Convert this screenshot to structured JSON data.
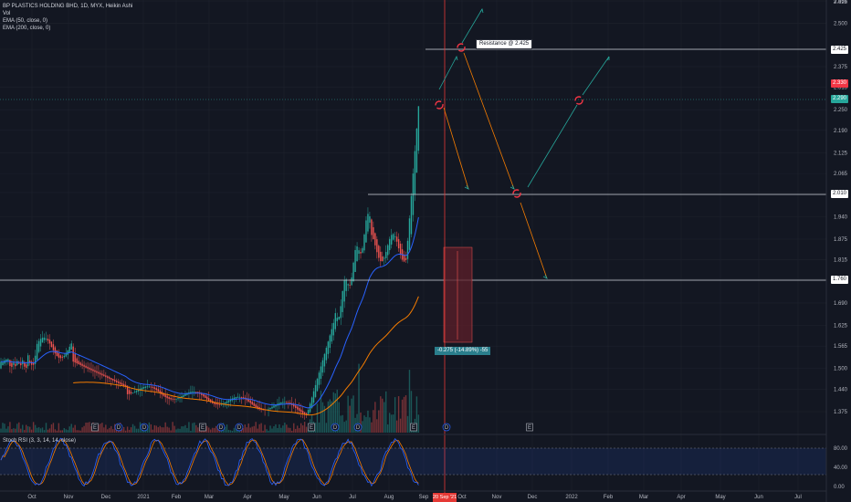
{
  "header": {
    "title": "BP PLASTICS HOLDING BHD, 1D, MYX, Heikin Ashi",
    "vol_label": "Vol",
    "ema50_label": "EMA (50, close, 0)",
    "ema200_label": "EMA (200, close, 0)"
  },
  "rsi_label": "Stoch RSI (3, 3, 14, 14, close)",
  "resistance_label": "Resistance @ 2.425",
  "measure_label": "-0.275 (-14.89%) -55",
  "current_date_label": "20 Sep '21",
  "price_axis": {
    "ticks": [
      "2.565",
      "2.500",
      "2.425",
      "2.375",
      "2.315",
      "2.250",
      "2.190",
      "2.125",
      "2.065",
      "2.010",
      "1.940",
      "1.875",
      "1.815",
      "1.760",
      "1.690",
      "1.625",
      "1.565",
      "1.500",
      "1.440",
      "1.375"
    ],
    "top_partial": "2.625",
    "tags": [
      {
        "text": "2.425",
        "bg": "#ffffff",
        "fg": "#131722"
      },
      {
        "text": "2.330",
        "bg": "#f23645",
        "fg": "#ffffff"
      },
      {
        "text": "2.290",
        "bg": "#26a69a",
        "fg": "#ffffff"
      },
      {
        "text": "2.010",
        "bg": "#ffffff",
        "fg": "#131722"
      },
      {
        "text": "1.760",
        "bg": "#ffffff",
        "fg": "#131722"
      }
    ]
  },
  "rsi_axis": {
    "ticks": [
      "80.00",
      "40.00",
      "0.00"
    ]
  },
  "time_axis": {
    "ticks": [
      "Oct",
      "Nov",
      "Dec",
      "2021",
      "Feb",
      "Mar",
      "Apr",
      "May",
      "Jun",
      "Jul",
      "Aug",
      "Sep",
      "Oct",
      "Nov",
      "Dec",
      "2022",
      "Feb",
      "Mar",
      "Apr",
      "May",
      "Jun",
      "Jul"
    ]
  },
  "event_markers": [
    "E",
    "D",
    "D",
    "E",
    "D",
    "D",
    "E",
    "D",
    "D",
    "E",
    "D",
    "E"
  ],
  "colors": {
    "background": "#131722",
    "up": "#26a69a",
    "down": "#ef5350",
    "ema50": "#2962ff",
    "ema200": "#f57c00",
    "arrow_orange": "#f57c00",
    "arrow_teal": "#26a69a",
    "rsi_k": "#2962ff",
    "rsi_d": "#f57c00",
    "current_date_line": "#e53935"
  }
}
